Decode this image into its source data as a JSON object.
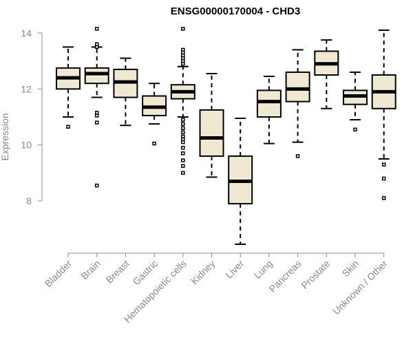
{
  "chart_data": {
    "type": "box",
    "title": "ENSG00000170004 - CHD3",
    "xlabel": "",
    "ylabel": "Expression",
    "ylim": [
      6.4,
      14.2
    ],
    "y_ticks": [
      8,
      10,
      12,
      14
    ],
    "grid": false,
    "legend": "none",
    "colors": {
      "box_fill": "#efe9d1",
      "box_stroke": "#000000",
      "axis_text": "#888888",
      "title": "#000000"
    },
    "categories": [
      "Bladder",
      "Brain",
      "Breast",
      "Gastric",
      "Hematopoietic cells",
      "Kidney",
      "Liver",
      "Lung",
      "Pancreas",
      "Prostate",
      "Skin",
      "Unknown / Other"
    ],
    "boxes": [
      {
        "name": "Bladder",
        "whisker_low": 11.0,
        "q1": 12.0,
        "median": 12.4,
        "q3": 12.75,
        "whisker_high": 13.5,
        "outliers": [
          10.65
        ]
      },
      {
        "name": "Brain",
        "whisker_low": 11.7,
        "q1": 12.2,
        "median": 12.55,
        "q3": 12.75,
        "whisker_high": 13.5,
        "outliers": [
          14.15,
          13.6,
          13.5,
          11.15,
          11.05,
          10.8,
          8.55
        ]
      },
      {
        "name": "Breast",
        "whisker_low": 10.7,
        "q1": 11.7,
        "median": 12.25,
        "q3": 12.7,
        "whisker_high": 13.1,
        "outliers": []
      },
      {
        "name": "Gastric",
        "whisker_low": 10.75,
        "q1": 11.05,
        "median": 11.35,
        "q3": 11.75,
        "whisker_high": 12.2,
        "outliers": [
          10.05
        ]
      },
      {
        "name": "Hematopoietic cells",
        "whisker_low": 11.0,
        "q1": 11.65,
        "median": 11.9,
        "q3": 12.15,
        "whisker_high": 12.8,
        "outliers": [
          14.15,
          13.4,
          13.3,
          13.2,
          13.1,
          13.0,
          12.9,
          10.9,
          10.75,
          10.6,
          10.45,
          10.3,
          10.2,
          10.1,
          9.9,
          9.7,
          9.45,
          9.25,
          9.0
        ]
      },
      {
        "name": "Kidney",
        "whisker_low": 8.85,
        "q1": 9.6,
        "median": 10.25,
        "q3": 11.25,
        "whisker_high": 12.55,
        "outliers": []
      },
      {
        "name": "Liver",
        "whisker_low": 6.45,
        "q1": 7.9,
        "median": 8.7,
        "q3": 9.6,
        "whisker_high": 10.95,
        "outliers": []
      },
      {
        "name": "Lung",
        "whisker_low": 10.05,
        "q1": 11.0,
        "median": 11.55,
        "q3": 11.95,
        "whisker_high": 12.45,
        "outliers": []
      },
      {
        "name": "Pancreas",
        "whisker_low": 10.1,
        "q1": 11.55,
        "median": 12.0,
        "q3": 12.6,
        "whisker_high": 13.4,
        "outliers": [
          9.6
        ]
      },
      {
        "name": "Prostate",
        "whisker_low": 11.3,
        "q1": 12.5,
        "median": 12.9,
        "q3": 13.35,
        "whisker_high": 13.75,
        "outliers": []
      },
      {
        "name": "Skin",
        "whisker_low": 10.9,
        "q1": 11.45,
        "median": 11.75,
        "q3": 11.95,
        "whisker_high": 12.6,
        "outliers": [
          10.55
        ]
      },
      {
        "name": "Unknown / Other",
        "whisker_low": 9.5,
        "q1": 11.3,
        "median": 11.9,
        "q3": 12.5,
        "whisker_high": 14.1,
        "outliers": [
          9.3,
          8.8,
          8.1
        ]
      }
    ]
  }
}
